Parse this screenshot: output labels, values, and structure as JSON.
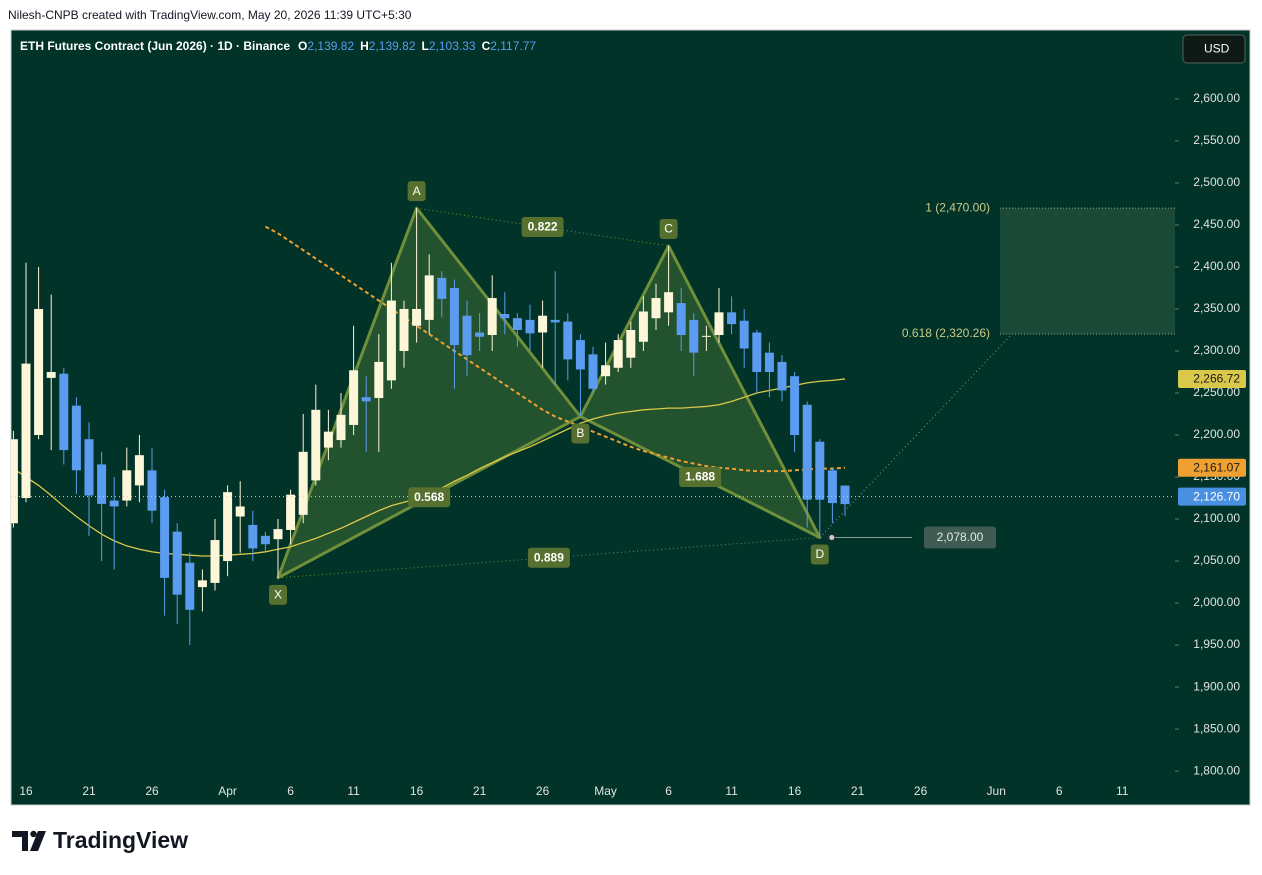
{
  "header": {
    "attribution": "Nilesh-CNPB created with TradingView.com, May 20, 2026 11:39 UTC+5:30"
  },
  "logo": "TradingView",
  "currency_button": "USD",
  "chart_data": {
    "type": "candlestick",
    "title": "ETH Futures Contract (Jun 2026) · 1D · Binance",
    "legend": [
      {
        "name": "O",
        "value": 2139.82,
        "label": "2,139.82"
      },
      {
        "name": "H",
        "value": 2139.82,
        "label": "2,139.82"
      },
      {
        "name": "L",
        "value": 2103.33,
        "label": "2,103.33"
      },
      {
        "name": "C",
        "value": 2117.77,
        "label": "2,117.77"
      }
    ],
    "categories": [
      null,
      "16",
      null,
      null,
      null,
      null,
      "21",
      null,
      null,
      null,
      null,
      "26",
      null,
      null,
      null,
      null,
      null,
      "Apr",
      null,
      null,
      null,
      null,
      "6",
      null,
      null,
      null,
      null,
      "11",
      null,
      null,
      null,
      null,
      "16",
      null,
      null,
      null,
      null,
      "21",
      null,
      null,
      null,
      null,
      "26",
      null,
      null,
      null,
      null,
      "May",
      null,
      null,
      null,
      null,
      "6",
      null,
      null,
      null,
      null,
      "11",
      null,
      null,
      null,
      null,
      "16",
      null,
      null,
      null,
      null,
      "21",
      null,
      null,
      null,
      null,
      "26",
      null,
      null,
      null,
      null,
      null,
      "Jun",
      null,
      null,
      null,
      null,
      "6",
      null,
      null,
      null,
      null,
      "11",
      null,
      null,
      null
    ],
    "open": [
      2095,
      2125,
      2200,
      2268,
      2273,
      2235,
      2195,
      2165,
      2122,
      2122,
      2140,
      2158,
      2126,
      2085,
      2048,
      2019,
      2024,
      2050,
      2103,
      2093,
      2080,
      2076,
      2087,
      2105,
      2146,
      2185,
      2194,
      2212,
      2245,
      2244,
      2265,
      2300,
      2330,
      2337,
      2387,
      2375,
      2342,
      2322,
      2319,
      2344,
      2339,
      2337,
      2322,
      2337,
      2335,
      2313,
      2296,
      2270,
      2280,
      2292,
      2311,
      2339,
      2346,
      2357,
      2337,
      2317,
      2319,
      2346,
      2336,
      2322,
      2298,
      2287,
      2270,
      2236,
      2192,
      2158,
      2139.82,
      null,
      null,
      null,
      null,
      null,
      null,
      null,
      null,
      null,
      null,
      null,
      null,
      null,
      null,
      null,
      null,
      null,
      null,
      null,
      null,
      null,
      null,
      null,
      null,
      null
    ],
    "high": [
      2205,
      2405,
      2400,
      2367,
      2280,
      2245,
      2215,
      2180,
      2150,
      2185,
      2200,
      2185,
      2135,
      2095,
      2060,
      2040,
      2100,
      2140,
      2145,
      2110,
      2085,
      2100,
      2135,
      2225,
      2260,
      2230,
      2250,
      2330,
      2270,
      2320,
      2405,
      2360,
      2470,
      2415,
      2395,
      2385,
      2360,
      2345,
      2390,
      2370,
      2345,
      2355,
      2360,
      2395,
      2345,
      2320,
      2305,
      2310,
      2320,
      2335,
      2365,
      2380,
      2425,
      2375,
      2345,
      2330,
      2375,
      2365,
      2350,
      2325,
      2310,
      2295,
      2275,
      2240,
      2195,
      2160,
      2139.82,
      null,
      null,
      null,
      null,
      null,
      null,
      null,
      null,
      null,
      null,
      null,
      null,
      null,
      null,
      null,
      null,
      null,
      null,
      null,
      null,
      null,
      null,
      null,
      null,
      null
    ],
    "low": [
      2090,
      2120,
      2195,
      2182,
      2165,
      2130,
      2080,
      2050,
      2040,
      2115,
      2120,
      2095,
      1985,
      1975,
      1950,
      1990,
      2015,
      2032,
      2060,
      2050,
      2060,
      2030,
      2070,
      2095,
      2140,
      2170,
      2185,
      2200,
      2180,
      2180,
      2255,
      2280,
      2310,
      2320,
      2340,
      2255,
      2270,
      2300,
      2300,
      2320,
      2305,
      2300,
      2280,
      2260,
      2265,
      2222,
      2250,
      2260,
      2275,
      2280,
      2300,
      2325,
      2330,
      2300,
      2270,
      2300,
      2310,
      2320,
      2280,
      2250,
      2245,
      2240,
      2180,
      2090,
      2078,
      2095,
      2103.33,
      null,
      null,
      null,
      null,
      null,
      null,
      null,
      null,
      null,
      null,
      null,
      null,
      null,
      null,
      null,
      null,
      null,
      null,
      null,
      null,
      null,
      null,
      null,
      null,
      null
    ],
    "close": [
      2195,
      2285,
      2350,
      2275,
      2182,
      2158,
      2128,
      2118,
      2115,
      2158,
      2176,
      2110,
      2030,
      2010,
      1992,
      2027,
      2075,
      2132,
      2115,
      2065,
      2070,
      2088,
      2129,
      2180,
      2230,
      2204,
      2224,
      2277,
      2240,
      2287,
      2360,
      2350,
      2350,
      2390,
      2362,
      2307,
      2295,
      2317,
      2363,
      2339,
      2325,
      2321,
      2342,
      2334,
      2290,
      2278,
      2255,
      2283,
      2313,
      2325,
      2347,
      2363,
      2370,
      2319,
      2298,
      2318,
      2346,
      2332,
      2303,
      2275,
      2275,
      2253,
      2200,
      2123,
      2123,
      2119,
      2117.77,
      null,
      null,
      null,
      null,
      null,
      null,
      null,
      null,
      null,
      null,
      null,
      null,
      null,
      null,
      null,
      null,
      null,
      null,
      null,
      null,
      null,
      null,
      null,
      null,
      null
    ],
    "up_color": "#fdf6d8",
    "down_color": "#5b9cf0",
    "overlays": [
      {
        "color": "#d9c84a",
        "style": "solid",
        "last_label": "2,266.72",
        "label_text_color": "#1a1a1a",
        "values": [
          2160,
          2150,
          2140,
          2128,
          2115,
          2103,
          2092,
          2082,
          2074,
          2068,
          2064,
          2061,
          2059,
          2058,
          2057,
          2056,
          2056,
          2057,
          2058,
          2059,
          2061,
          2064,
          2067,
          2072,
          2077,
          2083,
          2089,
          2096,
          2103,
          2110,
          2116,
          2120,
          2124,
          2130,
          2137,
          2145,
          2152,
          2160,
          2167,
          2174,
          2180,
          2186,
          2193,
          2200,
          2207,
          2214,
          2219,
          2223,
          2226,
          2228,
          2230,
          2231,
          2232,
          2232,
          2233,
          2234,
          2236,
          2240,
          2245,
          2250,
          2253,
          2256,
          2259,
          2262,
          2264,
          2265,
          2266.72,
          null,
          null,
          null,
          null,
          null,
          null,
          null,
          null,
          null,
          null,
          null,
          null,
          null,
          null,
          null,
          null,
          null,
          null,
          null,
          null,
          null,
          null,
          null,
          null,
          null
        ]
      },
      {
        "color": "#f0a030",
        "style": "dashed",
        "last_label": "2,161.07",
        "label_text_color": "#1a1a1a",
        "values": [
          null,
          null,
          null,
          null,
          null,
          null,
          null,
          null,
          null,
          null,
          null,
          null,
          null,
          null,
          null,
          null,
          null,
          null,
          null,
          null,
          2448,
          2440,
          2430,
          2420,
          2410,
          2400,
          2390,
          2380,
          2370,
          2360,
          2350,
          2340,
          2330,
          2320,
          2310,
          2300,
          2290,
          2280,
          2270,
          2260,
          2250,
          2240,
          2230,
          2222,
          2216,
          2210,
          2204,
          2198,
          2192,
          2186,
          2181,
          2177,
          2173,
          2169,
          2166,
          2163,
          2161,
          2160,
          2158,
          2157,
          2157,
          2157,
          2158,
          2159,
          2160,
          2160,
          2161.07,
          null,
          null,
          null,
          null,
          null,
          null,
          null,
          null,
          null,
          null,
          null,
          null,
          null,
          null,
          null,
          null,
          null,
          null,
          null,
          null,
          null,
          null,
          null,
          null,
          null
        ]
      }
    ],
    "last_price": {
      "value": 2126.7,
      "label": "2,126.70",
      "color": "#4a90e2"
    },
    "pattern": {
      "points": [
        {
          "name": "X",
          "value": 2030
        },
        {
          "name": "A",
          "value": 2470
        },
        {
          "name": "B",
          "value": 2222
        },
        {
          "name": "C",
          "value": 2425
        },
        {
          "name": "D",
          "value": 2078
        }
      ],
      "ratios": [
        0.568,
        0.822,
        1.688,
        0.889
      ],
      "color": "#6f8f3a"
    },
    "d_label": {
      "value": 2078,
      "label": "2,078.00"
    },
    "targets": [
      {
        "value": 2470,
        "label": "1 (2,470.00)"
      },
      {
        "value": 2320.26,
        "label": "0.618 (2,320.26)"
      }
    ],
    "ylim": [
      1793,
      2682
    ],
    "yticks": [
      {
        "value": 1800,
        "label": "1,800.00"
      },
      {
        "value": 1850,
        "label": "1,850.00"
      },
      {
        "value": 1900,
        "label": "1,900.00"
      },
      {
        "value": 1950,
        "label": "1,950.00"
      },
      {
        "value": 2000,
        "label": "2,000.00"
      },
      {
        "value": 2050,
        "label": "2,050.00"
      },
      {
        "value": 2100,
        "label": "2,100.00"
      },
      {
        "value": 2150,
        "label": "2,150.00"
      },
      {
        "value": 2200,
        "label": "2,200.00"
      },
      {
        "value": 2250,
        "label": "2,250.00"
      },
      {
        "value": 2300,
        "label": "2,300.00"
      },
      {
        "value": 2350,
        "label": "2,350.00"
      },
      {
        "value": 2400,
        "label": "2,400.00"
      },
      {
        "value": 2450,
        "label": "2,450.00"
      },
      {
        "value": 2500,
        "label": "2,500.00"
      },
      {
        "value": 2550,
        "label": "2,550.00"
      },
      {
        "value": 2600,
        "label": "2,600.00"
      }
    ],
    "grid": false
  }
}
